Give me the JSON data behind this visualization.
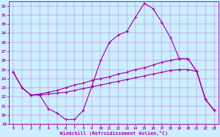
{
  "xlabel": "Windchill (Refroidissement éolien,°C)",
  "xlim": [
    -0.5,
    23.5
  ],
  "ylim": [
    19,
    32.5
  ],
  "yticks": [
    19,
    20,
    21,
    22,
    23,
    24,
    25,
    26,
    27,
    28,
    29,
    30,
    31,
    32
  ],
  "xticks": [
    0,
    1,
    2,
    3,
    4,
    5,
    6,
    7,
    8,
    9,
    10,
    11,
    12,
    13,
    14,
    15,
    16,
    17,
    18,
    19,
    20,
    21,
    22,
    23
  ],
  "bg_color": "#cceeff",
  "line_color": "#aa00aa",
  "line1_x": [
    0,
    1,
    2,
    3,
    4,
    5,
    6,
    7,
    8,
    9,
    10,
    11,
    12,
    13,
    14,
    15,
    16,
    17,
    18,
    19,
    20,
    21,
    22,
    23
  ],
  "line1_y": [
    24.7,
    23.0,
    22.2,
    22.2,
    20.7,
    20.2,
    19.5,
    19.5,
    20.5,
    23.2,
    26.0,
    28.0,
    28.8,
    29.2,
    30.8,
    32.3,
    31.7,
    30.2,
    28.5,
    26.2,
    26.2,
    24.8,
    21.7,
    20.5
  ],
  "line2_x": [
    0,
    1,
    2,
    3,
    4,
    5,
    6,
    7,
    8,
    9,
    10,
    11,
    12,
    13,
    14,
    15,
    16,
    17,
    18,
    19,
    20,
    21,
    22,
    23
  ],
  "line2_y": [
    24.7,
    23.0,
    22.2,
    22.3,
    22.5,
    22.7,
    23.0,
    23.3,
    23.5,
    23.8,
    24.0,
    24.2,
    24.5,
    24.7,
    25.0,
    25.2,
    25.5,
    25.8,
    26.0,
    26.2,
    26.2,
    24.8,
    21.7,
    20.5
  ],
  "line3_x": [
    0,
    1,
    2,
    3,
    4,
    5,
    6,
    7,
    8,
    9,
    10,
    11,
    12,
    13,
    14,
    15,
    16,
    17,
    18,
    19,
    20,
    21,
    22,
    23
  ],
  "line3_y": [
    24.7,
    23.0,
    22.2,
    22.2,
    22.3,
    22.4,
    22.5,
    22.7,
    22.9,
    23.1,
    23.3,
    23.5,
    23.7,
    23.9,
    24.1,
    24.3,
    24.5,
    24.7,
    24.9,
    25.0,
    25.0,
    24.8,
    21.7,
    20.5
  ],
  "marker_size": 3,
  "linewidth": 0.9
}
